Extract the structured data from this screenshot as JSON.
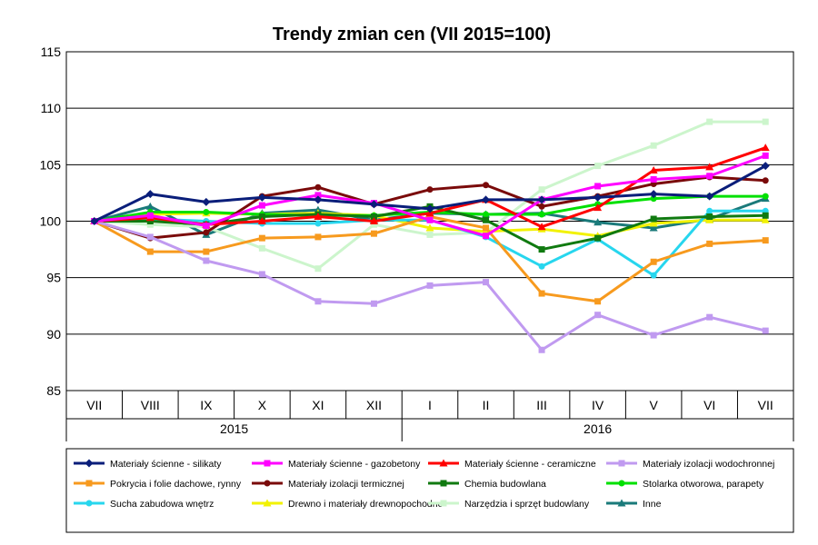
{
  "chart_data": {
    "type": "line",
    "title": "Trendy zmian cen (VII 2015=100)",
    "xlabel": "",
    "ylabel": "",
    "ylim": [
      85,
      115
    ],
    "yticks": [
      "85",
      "90",
      "95",
      "100",
      "105",
      "110",
      "115"
    ],
    "grid": true,
    "legend_position": "bottom",
    "categories": [
      "VII",
      "VIII",
      "IX",
      "X",
      "XI",
      "XII",
      "I",
      "II",
      "III",
      "IV",
      "V",
      "VI",
      "VII"
    ],
    "year_groups": [
      {
        "label": "2015",
        "start": 0,
        "end": 5
      },
      {
        "label": "2016",
        "start": 6,
        "end": 12
      }
    ],
    "series": [
      {
        "name": "Materiały ścienne - silikaty",
        "color": "#0a1e7a",
        "marker": "diamond",
        "values": [
          100,
          102.4,
          101.7,
          102.1,
          101.9,
          101.5,
          101.1,
          101.9,
          101.9,
          102.1,
          102.4,
          102.2,
          104.9
        ]
      },
      {
        "name": "Materiały ścienne - gazobetony",
        "color": "#ff00ff",
        "marker": "square",
        "values": [
          100,
          100.5,
          99.6,
          101.4,
          102.3,
          101.6,
          100.1,
          98.7,
          101.9,
          103.1,
          103.7,
          104.0,
          105.8
        ]
      },
      {
        "name": "Materiały ścienne - ceramiczne",
        "color": "#ff0000",
        "marker": "triangle",
        "values": [
          100,
          100.3,
          99.7,
          100.0,
          100.4,
          100.0,
          100.7,
          101.9,
          99.5,
          101.2,
          104.5,
          104.8,
          106.5
        ]
      },
      {
        "name": "Materiały izolacji wodochronnej",
        "color": "#c09af0",
        "marker": "square",
        "values": [
          100,
          98.6,
          96.5,
          95.3,
          92.9,
          92.7,
          94.3,
          94.6,
          88.6,
          91.7,
          89.9,
          91.5,
          90.3
        ]
      },
      {
        "name": "Pokrycia i folie dachowe, rynny",
        "color": "#f79a1e",
        "marker": "square",
        "values": [
          100,
          97.3,
          97.3,
          98.5,
          98.6,
          98.9,
          100.4,
          99.4,
          93.6,
          92.9,
          96.4,
          98.0,
          98.3
        ]
      },
      {
        "name": "Materiały izolacji termicznej",
        "color": "#7a0a0a",
        "marker": "circle",
        "values": [
          100,
          98.5,
          99.0,
          102.2,
          103.0,
          101.5,
          102.8,
          103.2,
          101.3,
          102.2,
          103.3,
          103.9,
          103.6
        ]
      },
      {
        "name": "Chemia budowlana",
        "color": "#107a10",
        "marker": "square",
        "values": [
          100,
          100.0,
          99.7,
          100.4,
          100.6,
          100.4,
          101.3,
          100.1,
          97.5,
          98.5,
          100.2,
          100.4,
          100.5
        ]
      },
      {
        "name": "Stolarka otworowa, parapety",
        "color": "#00e000",
        "marker": "circle",
        "values": [
          100,
          100.8,
          100.8,
          100.6,
          100.5,
          100.5,
          100.8,
          100.6,
          100.6,
          101.5,
          102.0,
          102.2,
          102.2
        ]
      },
      {
        "name": "Sucha zabudowa wnętrz",
        "color": "#27d6ee",
        "marker": "circle",
        "values": [
          100,
          100.2,
          100.0,
          99.8,
          99.8,
          100.1,
          100.1,
          98.6,
          96.0,
          98.4,
          95.2,
          100.9,
          100.9
        ]
      },
      {
        "name": "Drewno i materiały drewnopochodne",
        "color": "#f2f200",
        "marker": "triangle",
        "values": [
          100,
          100.6,
          100.7,
          100.6,
          100.7,
          100.5,
          99.4,
          99.1,
          99.3,
          98.7,
          99.8,
          100.1,
          100.1
        ]
      },
      {
        "name": "Narzędzia i sprzęt budowlany",
        "color": "#ccf5cc",
        "marker": "square",
        "values": [
          100,
          99.7,
          99.5,
          97.6,
          95.8,
          99.7,
          98.8,
          99.0,
          102.8,
          104.9,
          106.7,
          108.8,
          108.8
        ]
      },
      {
        "name": "Inne",
        "color": "#1a7a7a",
        "marker": "triangle",
        "values": [
          100,
          101.3,
          98.8,
          100.7,
          101.0,
          100.1,
          100.7,
          100.6,
          100.7,
          99.9,
          99.4,
          100.2,
          102.0
        ]
      }
    ]
  }
}
